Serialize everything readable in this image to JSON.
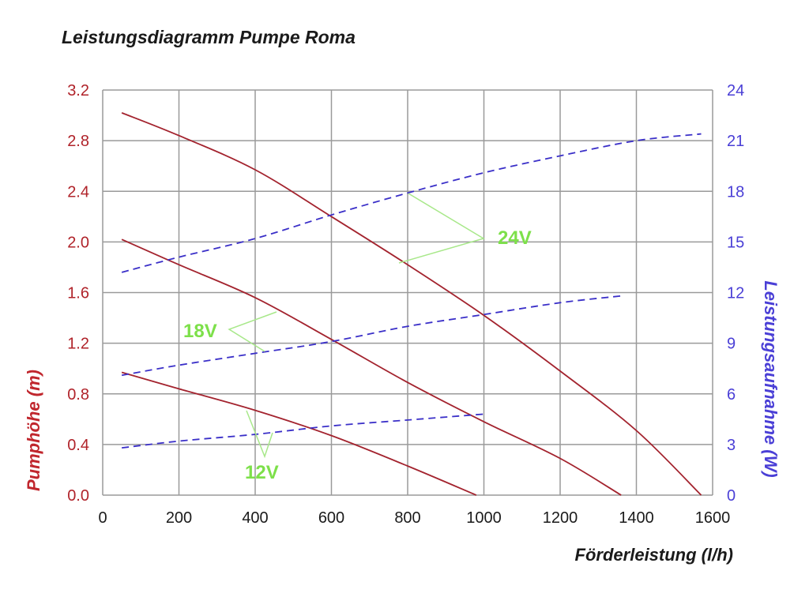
{
  "chart_data": {
    "type": "line",
    "title": "Leistungsdiagramm Pumpe Roma",
    "xlabel": "Förderleistung (l/h)",
    "ylabel": "Pumphöhe (m)",
    "y2label": "Leistungsaufnahme (W)",
    "xlim": [
      0,
      1600
    ],
    "ylim": [
      0,
      3.2
    ],
    "y2lim": [
      0,
      24
    ],
    "xticks": [
      "0",
      "200",
      "400",
      "600",
      "800",
      "1000",
      "1200",
      "1400",
      "1600"
    ],
    "yticks": [
      "0.0",
      "0.4",
      "0.8",
      "1.2",
      "1.6",
      "2.0",
      "2.4",
      "2.8",
      "3.2"
    ],
    "y2ticks": [
      "0",
      "3",
      "6",
      "9",
      "12",
      "15",
      "18",
      "21",
      "24"
    ],
    "grid": true,
    "colors": {
      "head": "#a3232e",
      "power": "#3a2fc8",
      "annotation": "#7de04a",
      "left_axis": "#b0232a",
      "right_axis": "#4a3fd6"
    },
    "series": [
      {
        "voltage": "24V",
        "kind": "head",
        "axis": "left",
        "style": "solid",
        "x": [
          50,
          200,
          400,
          600,
          800,
          1000,
          1200,
          1400,
          1570
        ],
        "y": [
          3.02,
          2.84,
          2.57,
          2.2,
          1.82,
          1.42,
          0.98,
          0.51,
          0
        ]
      },
      {
        "voltage": "18V",
        "kind": "head",
        "axis": "left",
        "style": "solid",
        "x": [
          50,
          200,
          400,
          600,
          800,
          1000,
          1200,
          1360
        ],
        "y": [
          2.02,
          1.82,
          1.56,
          1.23,
          0.89,
          0.58,
          0.29,
          0
        ]
      },
      {
        "voltage": "12V",
        "kind": "head",
        "axis": "left",
        "style": "solid",
        "x": [
          50,
          200,
          400,
          600,
          800,
          980
        ],
        "y": [
          0.97,
          0.84,
          0.67,
          0.47,
          0.23,
          0
        ]
      },
      {
        "voltage": "24V",
        "kind": "power",
        "axis": "right",
        "style": "dashed",
        "x": [
          50,
          200,
          400,
          600,
          800,
          1000,
          1200,
          1400,
          1570
        ],
        "y": [
          13.2,
          14.1,
          15.2,
          16.6,
          17.9,
          19.1,
          20.1,
          21.0,
          21.4
        ]
      },
      {
        "voltage": "18V",
        "kind": "power",
        "axis": "right",
        "style": "dashed",
        "x": [
          50,
          200,
          400,
          600,
          800,
          1000,
          1200,
          1360
        ],
        "y": [
          7.1,
          7.7,
          8.4,
          9.1,
          10.0,
          10.7,
          11.4,
          11.8
        ]
      },
      {
        "voltage": "12V",
        "kind": "power",
        "axis": "right",
        "style": "dashed",
        "x": [
          50,
          200,
          400,
          600,
          800,
          1000
        ],
        "y": [
          2.8,
          3.2,
          3.6,
          4.1,
          4.45,
          4.8
        ]
      }
    ],
    "annotations": [
      {
        "text": "24V"
      },
      {
        "text": "18V"
      },
      {
        "text": "12V"
      }
    ]
  }
}
